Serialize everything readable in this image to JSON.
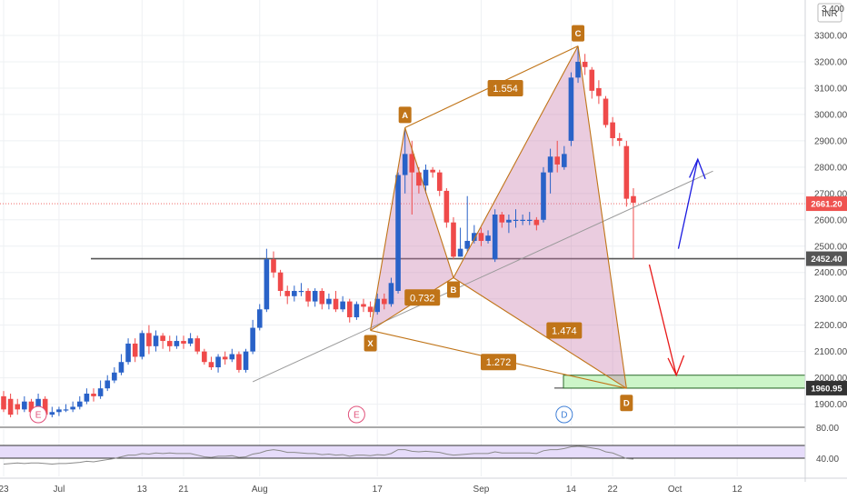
{
  "currency_badge": "INR",
  "partial_top_tick": "3,400",
  "chart_data": {
    "type": "candlestick",
    "title": "",
    "y_ticks": [
      "3300.00",
      "3200.00",
      "3100.00",
      "3000.00",
      "2900.00",
      "2800.00",
      "2700.00",
      "2600.00",
      "2500.00",
      "2400.00",
      "2300.00",
      "2200.00",
      "2100.00",
      "2000.00",
      "1900.00"
    ],
    "x_ticks": [
      {
        "label": "23",
        "day": 0
      },
      {
        "label": "Jul",
        "day": 8
      },
      {
        "label": "13",
        "day": 20
      },
      {
        "label": "21",
        "day": 26
      },
      {
        "label": "Aug",
        "day": 37
      },
      {
        "label": "17",
        "day": 54
      },
      {
        "label": "Sep",
        "day": 69
      },
      {
        "label": "14",
        "day": 82
      },
      {
        "label": "22",
        "day": 88
      },
      {
        "label": "Oct",
        "day": 97
      },
      {
        "label": "12",
        "day": 106
      }
    ],
    "candles": [
      [
        0,
        1930,
        1880,
        1950,
        1870
      ],
      [
        1,
        1920,
        1860,
        1940,
        1850
      ],
      [
        2,
        1900,
        1880,
        1920,
        1860
      ],
      [
        3,
        1880,
        1910,
        1930,
        1870
      ],
      [
        4,
        1910,
        1870,
        1920,
        1860
      ],
      [
        5,
        1880,
        1920,
        1940,
        1870
      ],
      [
        6,
        1920,
        1860,
        1930,
        1850
      ],
      [
        7,
        1860,
        1870,
        1890,
        1850
      ],
      [
        8,
        1870,
        1880,
        1890,
        1855
      ],
      [
        9,
        1880,
        1880,
        1900,
        1870
      ],
      [
        10,
        1880,
        1890,
        1910,
        1870
      ],
      [
        11,
        1890,
        1910,
        1930,
        1880
      ],
      [
        12,
        1910,
        1940,
        1960,
        1900
      ],
      [
        13,
        1940,
        1930,
        1960,
        1910
      ],
      [
        14,
        1930,
        1960,
        1990,
        1920
      ],
      [
        15,
        1960,
        1990,
        2010,
        1950
      ],
      [
        16,
        1990,
        2020,
        2040,
        1980
      ],
      [
        17,
        2020,
        2060,
        2090,
        2010
      ],
      [
        18,
        2060,
        2130,
        2150,
        2050
      ],
      [
        19,
        2130,
        2080,
        2150,
        2060
      ],
      [
        20,
        2080,
        2170,
        2180,
        2070
      ],
      [
        21,
        2170,
        2120,
        2200,
        2090
      ],
      [
        22,
        2120,
        2160,
        2180,
        2100
      ],
      [
        23,
        2160,
        2140,
        2170,
        2110
      ],
      [
        24,
        2140,
        2120,
        2160,
        2100
      ],
      [
        25,
        2120,
        2140,
        2160,
        2110
      ],
      [
        26,
        2140,
        2130,
        2160,
        2110
      ],
      [
        27,
        2130,
        2150,
        2170,
        2120
      ],
      [
        28,
        2150,
        2100,
        2160,
        2090
      ],
      [
        29,
        2100,
        2060,
        2110,
        2050
      ],
      [
        30,
        2060,
        2040,
        2080,
        2030
      ],
      [
        31,
        2040,
        2080,
        2090,
        2020
      ],
      [
        32,
        2080,
        2070,
        2100,
        2050
      ],
      [
        33,
        2070,
        2090,
        2110,
        2060
      ],
      [
        34,
        2090,
        2030,
        2100,
        2020
      ],
      [
        35,
        2030,
        2100,
        2110,
        2020
      ],
      [
        36,
        2100,
        2190,
        2220,
        2090
      ],
      [
        37,
        2190,
        2260,
        2280,
        2180
      ],
      [
        38,
        2260,
        2450,
        2490,
        2250
      ],
      [
        39,
        2450,
        2400,
        2480,
        2380
      ],
      [
        40,
        2400,
        2330,
        2410,
        2310
      ],
      [
        41,
        2330,
        2310,
        2350,
        2280
      ],
      [
        42,
        2310,
        2330,
        2350,
        2290
      ],
      [
        43,
        2330,
        2330,
        2360,
        2310
      ],
      [
        44,
        2330,
        2290,
        2340,
        2270
      ],
      [
        45,
        2290,
        2330,
        2340,
        2270
      ],
      [
        46,
        2330,
        2280,
        2340,
        2260
      ],
      [
        47,
        2280,
        2300,
        2320,
        2260
      ],
      [
        48,
        2300,
        2260,
        2330,
        2250
      ],
      [
        49,
        2260,
        2290,
        2310,
        2250
      ],
      [
        50,
        2290,
        2230,
        2300,
        2210
      ],
      [
        51,
        2230,
        2280,
        2290,
        2220
      ],
      [
        52,
        2280,
        2270,
        2300,
        2250
      ],
      [
        53,
        2270,
        2250,
        2290,
        2230
      ],
      [
        54,
        2250,
        2300,
        2320,
        2240
      ],
      [
        55,
        2300,
        2280,
        2320,
        2260
      ],
      [
        56,
        2280,
        2360,
        2380,
        2270
      ],
      [
        57,
        2330,
        2770,
        2780,
        2320
      ],
      [
        58,
        2770,
        2850,
        2940,
        2700
      ],
      [
        59,
        2850,
        2780,
        2900,
        2620
      ],
      [
        60,
        2780,
        2730,
        2800,
        2700
      ],
      [
        61,
        2730,
        2790,
        2810,
        2700
      ],
      [
        62,
        2790,
        2780,
        2800,
        2760
      ],
      [
        63,
        2780,
        2710,
        2790,
        2690
      ],
      [
        64,
        2710,
        2590,
        2720,
        2570
      ],
      [
        65,
        2590,
        2460,
        2610,
        2450
      ],
      [
        66,
        2460,
        2490,
        2570,
        2460
      ],
      [
        67,
        2490,
        2520,
        2690,
        2480
      ],
      [
        68,
        2520,
        2550,
        2580,
        2510
      ],
      [
        69,
        2550,
        2520,
        2570,
        2500
      ],
      [
        70,
        2520,
        2540,
        2560,
        2510
      ],
      [
        71,
        2450,
        2620,
        2640,
        2440
      ],
      [
        72,
        2620,
        2590,
        2630,
        2570
      ],
      [
        73,
        2590,
        2600,
        2620,
        2550
      ],
      [
        74,
        2600,
        2600,
        2640,
        2570
      ],
      [
        75,
        2600,
        2600,
        2620,
        2580
      ],
      [
        76,
        2600,
        2600,
        2630,
        2580
      ],
      [
        77,
        2600,
        2580,
        2610,
        2560
      ],
      [
        78,
        2600,
        2780,
        2800,
        2590
      ],
      [
        79,
        2780,
        2840,
        2870,
        2700
      ],
      [
        80,
        2840,
        2810,
        2900,
        2780
      ],
      [
        81,
        2800,
        2850,
        2880,
        2790
      ],
      [
        82,
        2900,
        3140,
        3160,
        2880
      ],
      [
        83,
        3140,
        3200,
        3260,
        3120
      ],
      [
        84,
        3200,
        3180,
        3230,
        3150
      ],
      [
        85,
        3170,
        3090,
        3180,
        3060
      ],
      [
        86,
        3100,
        3070,
        3130,
        3040
      ],
      [
        87,
        3060,
        2960,
        3070,
        2950
      ],
      [
        88,
        2970,
        2910,
        2990,
        2880
      ],
      [
        89,
        2910,
        2900,
        2930,
        2880
      ],
      [
        90,
        2880,
        2680,
        2900,
        2650
      ],
      [
        91,
        2690,
        2665,
        2720,
        2450
      ]
    ],
    "last_price_label": "2661.20",
    "support_level": 2452.4,
    "support_label": "2452.40",
    "target_level": 1960.95,
    "target_label": "1960.95",
    "pattern_points": [
      {
        "name": "X",
        "day": 53,
        "price": 2180
      },
      {
        "name": "A",
        "day": 58,
        "price": 2950
      },
      {
        "name": "B",
        "day": 65,
        "price": 2380
      },
      {
        "name": "C",
        "day": 83,
        "price": 3260
      },
      {
        "name": "D",
        "day": 90,
        "price": 1960
      }
    ],
    "pattern_ratios": [
      {
        "label": "0.732",
        "day": 60.5,
        "price": 2305
      },
      {
        "label": "1.554",
        "day": 72.5,
        "price": 3100
      },
      {
        "label": "1.474",
        "day": 81,
        "price": 2180
      },
      {
        "label": "1.272",
        "day": 71.5,
        "price": 2060
      }
    ],
    "events": [
      {
        "label": "E",
        "day": 5,
        "color": "#e0507a"
      },
      {
        "label": "E",
        "day": 51,
        "color": "#e0507a"
      },
      {
        "label": "D",
        "day": 81,
        "color": "#3f7fd6"
      }
    ],
    "rsi_ticks": [
      "80.00",
      "40.00"
    ],
    "rsi_values": [
      36,
      37,
      38,
      37,
      38,
      38,
      37,
      36,
      37,
      37,
      38,
      39,
      41,
      40,
      42,
      44,
      46,
      49,
      52,
      52,
      55,
      54,
      56,
      55,
      56,
      55,
      55,
      55,
      52,
      49,
      48,
      50,
      50,
      51,
      48,
      49,
      54,
      56,
      60,
      62,
      60,
      57,
      57,
      56,
      55,
      55,
      53,
      54,
      52,
      53,
      50,
      52,
      52,
      51,
      53,
      52,
      55,
      62,
      62,
      59,
      58,
      59,
      58,
      57,
      54,
      52,
      53,
      54,
      55,
      55,
      55,
      58,
      56,
      56,
      56,
      56,
      56,
      55,
      60,
      62,
      62,
      64,
      67,
      68,
      67,
      65,
      63,
      58,
      56,
      51,
      46,
      45
    ]
  }
}
